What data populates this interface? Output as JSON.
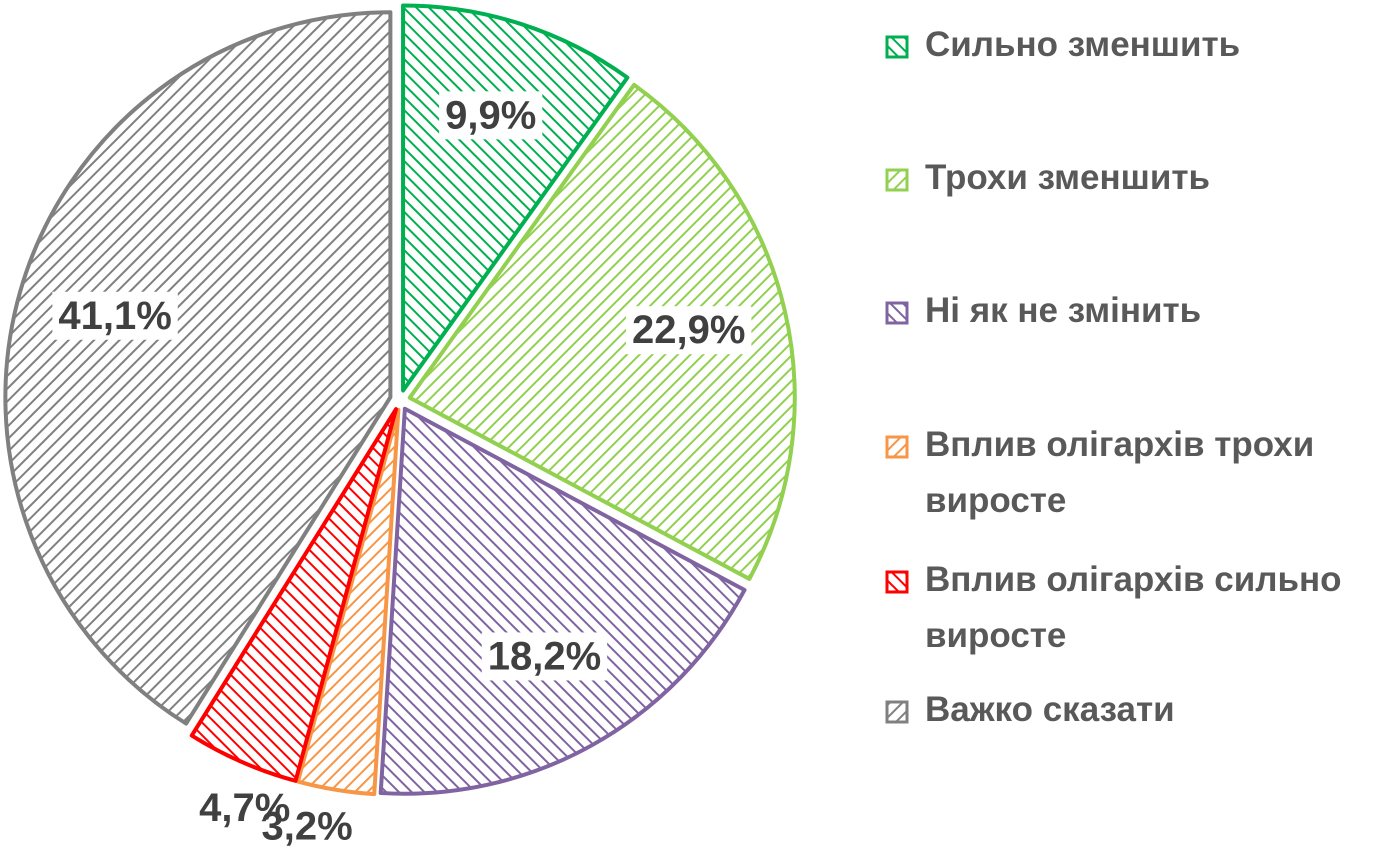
{
  "chart_data": {
    "type": "pie",
    "categories": [
      "Сильно зменшить",
      "Трохи зменшить",
      "Ні як не змінить",
      "Вплив олігархів трохи виросте",
      "Вплив олігархів сильно виросте",
      "Важко сказати"
    ],
    "values": [
      9.9,
      22.9,
      18.2,
      3.2,
      4.7,
      41.1
    ],
    "value_labels": [
      "9,9%",
      "22,9%",
      "18,2%",
      "3,2%",
      "4,7%",
      "41,1%"
    ],
    "colors": [
      "#00b050",
      "#92d050",
      "#8064a2",
      "#f79646",
      "#ff0000",
      "#808080"
    ],
    "legend": "right"
  }
}
